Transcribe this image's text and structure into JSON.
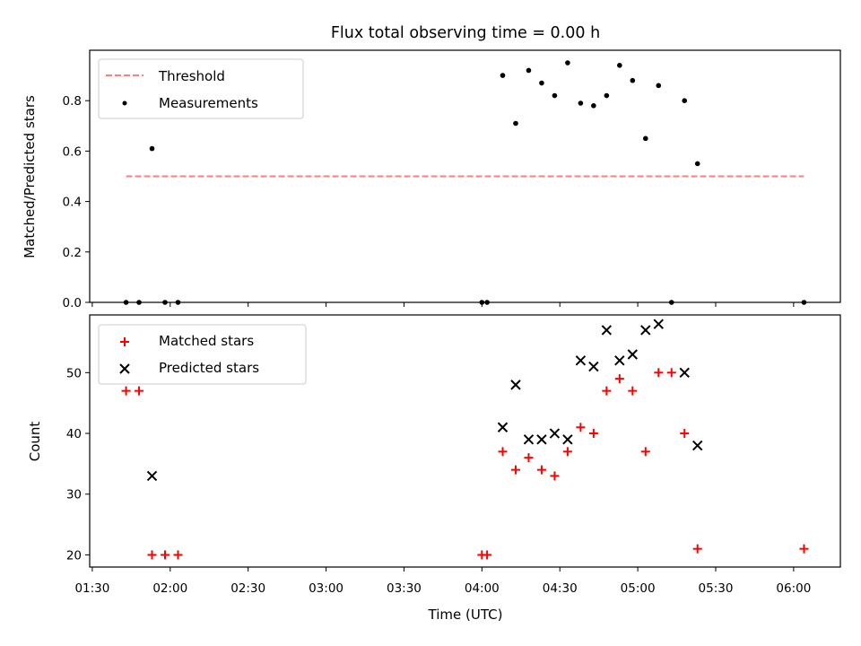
{
  "chart_data": [
    {
      "type": "scatter",
      "title": "Flux total observing time = 0.00 h",
      "xlabel": "",
      "ylabel": "Matched/Predicted stars",
      "x_unit": "time (UTC)",
      "xlim": [
        "01:29",
        "06:18"
      ],
      "ylim": [
        0,
        1.0
      ],
      "y_ticks": [
        0.0,
        0.2,
        0.4,
        0.6,
        0.8
      ],
      "y_tick_labels": [
        "0.0",
        "0.2",
        "0.4",
        "0.6",
        "0.8"
      ],
      "grid": false,
      "legend_position": "top-left",
      "series": [
        {
          "name": "Threshold",
          "style": "dashed-line",
          "color": "#ff7f7f",
          "x": [
            "01:43",
            "06:04"
          ],
          "y": [
            0.5,
            0.5
          ]
        },
        {
          "name": "Measurements",
          "style": "dot",
          "color": "#000000",
          "x": [
            "01:43",
            "01:48",
            "01:53",
            "01:58",
            "02:03",
            "04:00",
            "04:02",
            "04:08",
            "04:13",
            "04:18",
            "04:23",
            "04:28",
            "04:33",
            "04:38",
            "04:43",
            "04:48",
            "04:53",
            "04:58",
            "05:03",
            "05:08",
            "05:13",
            "05:18",
            "05:23",
            "06:04"
          ],
          "y": [
            0.0,
            0.0,
            0.61,
            0.0,
            0.0,
            0.0,
            0.0,
            0.9,
            0.71,
            0.92,
            0.87,
            0.82,
            0.95,
            0.79,
            0.78,
            0.82,
            0.94,
            0.88,
            0.65,
            0.86,
            0.0,
            0.8,
            0.55,
            0.0
          ]
        }
      ]
    },
    {
      "type": "scatter",
      "title": "",
      "xlabel": "Time (UTC)",
      "ylabel": "Count",
      "xlim": [
        "01:29",
        "06:18"
      ],
      "ylim": [
        18,
        59.5
      ],
      "y_ticks": [
        20,
        30,
        40,
        50
      ],
      "y_tick_labels": [
        "20",
        "30",
        "40",
        "50"
      ],
      "x_ticks": [
        "01:30",
        "02:00",
        "02:30",
        "03:00",
        "03:30",
        "04:00",
        "04:30",
        "05:00",
        "05:30",
        "06:00"
      ],
      "x_tick_labels": [
        "01:30",
        "02:00",
        "02:30",
        "03:00",
        "03:30",
        "04:00",
        "04:30",
        "05:00",
        "05:30",
        "06:00"
      ],
      "grid": false,
      "legend_position": "top-left",
      "series": [
        {
          "name": "Matched stars",
          "marker": "plus",
          "color": "#ff0000",
          "x": [
            "01:43",
            "01:48",
            "01:53",
            "01:58",
            "02:03",
            "04:00",
            "04:02",
            "04:08",
            "04:13",
            "04:18",
            "04:23",
            "04:28",
            "04:33",
            "04:38",
            "04:43",
            "04:48",
            "04:53",
            "04:58",
            "05:03",
            "05:08",
            "05:13",
            "05:18",
            "05:23",
            "06:04"
          ],
          "y": [
            47,
            47,
            20,
            20,
            20,
            20,
            20,
            37,
            34,
            36,
            34,
            33,
            37,
            41,
            40,
            47,
            49,
            47,
            37,
            50,
            50,
            40,
            21,
            21
          ]
        },
        {
          "name": "Predicted stars",
          "marker": "x",
          "color": "#000000",
          "x": [
            "01:53",
            "04:08",
            "04:13",
            "04:18",
            "04:23",
            "04:28",
            "04:33",
            "04:38",
            "04:43",
            "04:48",
            "04:53",
            "04:58",
            "05:03",
            "05:08",
            "05:18",
            "05:23"
          ],
          "y": [
            33,
            41,
            48,
            39,
            39,
            40,
            39,
            52,
            51,
            57,
            52,
            53,
            57,
            58,
            50,
            38
          ]
        }
      ]
    }
  ]
}
